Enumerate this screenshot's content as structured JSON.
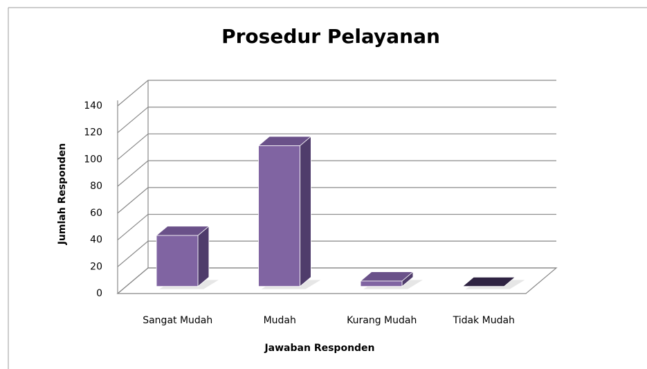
{
  "chart_data": {
    "type": "bar3d",
    "title": "Prosedur Pelayanan",
    "x_label": "Jawaban Responden",
    "y_label": "Jumlah Responden",
    "categories": [
      "Sangat Mudah",
      "Mudah",
      "Kurang Mudah",
      "Tidak Mudah"
    ],
    "values": [
      38,
      105,
      4,
      0
    ],
    "color": "#8064a2",
    "ylim": [
      0,
      140
    ],
    "yticks": [
      0,
      20,
      40,
      60,
      80,
      100,
      120,
      140
    ],
    "grid": true
  }
}
